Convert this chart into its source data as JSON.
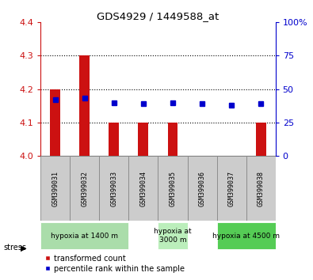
{
  "title": "GDS4929 / 1449588_at",
  "samples": [
    "GSM399031",
    "GSM399032",
    "GSM399033",
    "GSM399034",
    "GSM399035",
    "GSM399036",
    "GSM399037",
    "GSM399038"
  ],
  "bar_values": [
    4.2,
    4.3,
    4.1,
    4.1,
    4.1,
    4.0,
    4.0,
    4.1
  ],
  "bar_base": 4.0,
  "percentile_values": [
    42,
    43,
    40,
    39,
    40,
    39,
    38,
    39
  ],
  "ylim": [
    4.0,
    4.4
  ],
  "yticks": [
    4.0,
    4.1,
    4.2,
    4.3,
    4.4
  ],
  "right_yticks": [
    0,
    25,
    50,
    75,
    100
  ],
  "right_ylim": [
    0,
    100
  ],
  "bar_color": "#cc1111",
  "dot_color": "#0000cc",
  "background_color": "#ffffff",
  "tick_label_color_left": "#cc1111",
  "tick_label_color_right": "#0000cc",
  "stress_groups": [
    {
      "label": "hypoxia at 1400 m",
      "start": 0,
      "end": 3,
      "color": "#aaddaa"
    },
    {
      "label": "hypoxia at\n3000 m",
      "start": 4,
      "end": 5,
      "color": "#bbeebb"
    },
    {
      "label": "hypoxia at 4500 m",
      "start": 6,
      "end": 8,
      "color": "#55cc55"
    }
  ],
  "stress_label": "stress",
  "legend_red": "transformed count",
  "legend_blue": "percentile rank within the sample",
  "bar_width": 0.35,
  "sample_bg_color": "#cccccc",
  "sample_border_color": "#888888"
}
